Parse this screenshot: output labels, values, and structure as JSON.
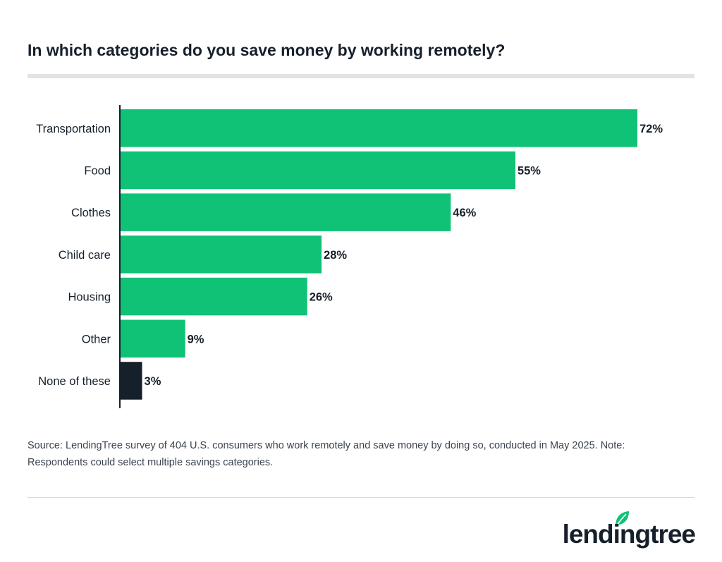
{
  "chart_data": {
    "type": "bar",
    "orientation": "horizontal",
    "title": "In which categories do you save money by working remotely?",
    "categories": [
      "Transportation",
      "Food",
      "Clothes",
      "Child care",
      "Housing",
      "Other",
      "None of these"
    ],
    "values": [
      72,
      55,
      46,
      28,
      26,
      9,
      3
    ],
    "value_labels": [
      "72%",
      "55%",
      "46%",
      "28%",
      "26%",
      "9%",
      "3%"
    ],
    "unit": "%",
    "xlim": [
      0,
      72
    ],
    "grid": false,
    "colors": {
      "bar": "#0fc275",
      "highlight_bar": "#16202b",
      "axis": "#16202b"
    },
    "bar_colors": [
      "#0fc275",
      "#0fc275",
      "#0fc275",
      "#0fc275",
      "#0fc275",
      "#0fc275",
      "#16202b"
    ]
  },
  "source_note": "Source: LendingTree survey of 404 U.S. consumers who work remotely and save money by doing so, conducted in May 2025. Note: Respondents could select multiple savings categories.",
  "brand": {
    "name": "lendingtree",
    "leaf_icon": "leaf-icon",
    "color": "#0fc275"
  }
}
